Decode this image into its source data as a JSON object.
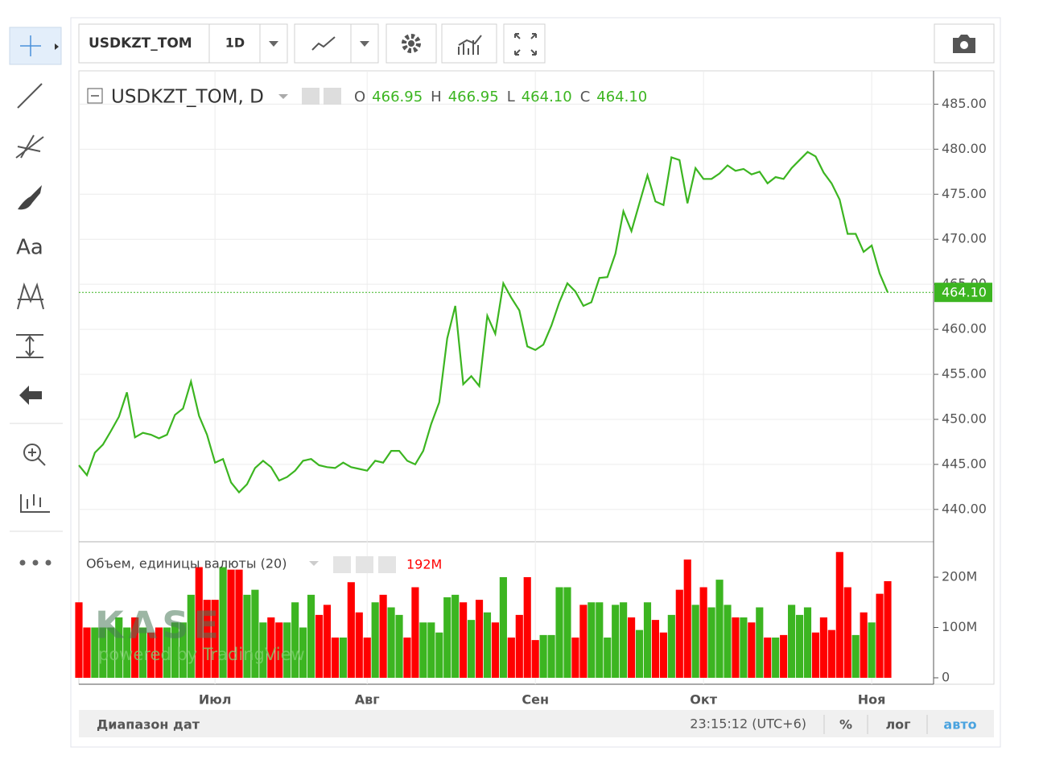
{
  "toolbar": {
    "symbol": "USDKZT_TOM",
    "interval": "1D"
  },
  "left_toolbar": {
    "text_tool": "Aa"
  },
  "watermark": {
    "logo": "KASE",
    "tagline": "powered by TradingView"
  },
  "chart_data": [
    {
      "type": "line",
      "title": "USDKZT_TOM, D",
      "ohlc": [
        {
          "label": "O",
          "value": "466.95"
        },
        {
          "label": "H",
          "value": "466.95"
        },
        {
          "label": "L",
          "value": "464.10"
        },
        {
          "label": "C",
          "value": "464.10"
        }
      ],
      "last_value_label": "464.10",
      "color": "#3cb521",
      "categories": [
        null,
        null,
        null,
        null,
        null,
        null,
        null,
        null,
        null,
        null,
        null,
        null,
        null,
        null,
        null,
        null,
        null,
        "Июл",
        null,
        null,
        null,
        null,
        null,
        null,
        null,
        null,
        null,
        null,
        null,
        null,
        null,
        null,
        null,
        null,
        null,
        null,
        "Авг",
        null,
        null,
        null,
        null,
        null,
        null,
        null,
        null,
        null,
        null,
        null,
        null,
        null,
        null,
        null,
        null,
        null,
        null,
        null,
        null,
        "Сен",
        null,
        null,
        null,
        null,
        null,
        null,
        null,
        null,
        null,
        null,
        null,
        null,
        null,
        null,
        null,
        null,
        null,
        null,
        null,
        null,
        "Окт",
        null,
        null,
        null,
        null,
        null,
        null,
        null,
        null,
        null,
        null,
        null,
        null,
        null,
        null,
        null,
        null,
        null,
        null,
        null,
        null,
        "Ноя",
        null,
        null
      ],
      "values": [
        444.9,
        443.8,
        446.3,
        447.2,
        448.7,
        450.3,
        453.0,
        448.0,
        448.5,
        448.3,
        447.9,
        448.3,
        450.5,
        451.2,
        454.2,
        450.4,
        448.3,
        445.2,
        445.6,
        443.0,
        441.9,
        442.8,
        444.6,
        445.4,
        444.7,
        443.2,
        443.6,
        444.3,
        445.4,
        445.6,
        444.9,
        444.7,
        444.6,
        445.2,
        444.7,
        444.5,
        444.3,
        445.4,
        445.2,
        446.5,
        446.5,
        445.4,
        445.0,
        446.5,
        449.5,
        451.9,
        459.0,
        462.6,
        453.9,
        454.8,
        453.7,
        461.5,
        459.5,
        465.1,
        463.5,
        462.1,
        458.1,
        457.7,
        458.3,
        460.4,
        463.0,
        465.1,
        464.2,
        462.6,
        463.0,
        465.7,
        465.8,
        468.4,
        473.1,
        470.9,
        474.0,
        477.1,
        474.2,
        473.8,
        479.1,
        478.8,
        474.0,
        477.9,
        476.7,
        476.7,
        477.3,
        478.2,
        477.6,
        477.8,
        477.2,
        477.5,
        476.2,
        476.9,
        476.7,
        477.9,
        478.8,
        479.7,
        479.2,
        477.4,
        476.2,
        474.4,
        470.6,
        470.6,
        468.6,
        469.3,
        466.2,
        464.1
      ],
      "ylim": [
        436.5,
        488.7
      ],
      "yticks": [
        {
          "value": 440,
          "label": "440.00"
        },
        {
          "value": 445,
          "label": "445.00"
        },
        {
          "value": 450,
          "label": "450.00"
        },
        {
          "value": 455,
          "label": "455.00"
        },
        {
          "value": 460,
          "label": "460.00"
        },
        {
          "value": 465,
          "label": "465.00"
        },
        {
          "value": 470,
          "label": "470.00"
        },
        {
          "value": 475,
          "label": "475.00"
        },
        {
          "value": 480,
          "label": "480.00"
        },
        {
          "value": 485,
          "label": "485.00"
        }
      ],
      "grid": true
    },
    {
      "type": "bar",
      "title": "Объем, единицы валюты (20)",
      "last_value_label": "192M",
      "up_color": "#3cb521",
      "down_color": "#ff0000",
      "values": [
        150000000,
        100000000,
        100000000,
        100000000,
        100000000,
        120000000,
        100000000,
        120000000,
        100000000,
        90000000,
        100000000,
        100000000,
        110000000,
        110000000,
        165000000,
        220000000,
        155000000,
        155000000,
        220000000,
        215000000,
        215000000,
        165000000,
        175000000,
        110000000,
        120000000,
        110000000,
        110000000,
        150000000,
        100000000,
        165000000,
        125000000,
        145000000,
        80000000,
        80000000,
        190000000,
        130000000,
        80000000,
        150000000,
        165000000,
        140000000,
        125000000,
        80000000,
        180000000,
        110000000,
        110000000,
        90000000,
        160000000,
        165000000,
        150000000,
        115000000,
        155000000,
        130000000,
        110000000,
        200000000,
        80000000,
        125000000,
        200000000,
        75000000,
        85000000,
        85000000,
        180000000,
        180000000,
        80000000,
        145000000,
        150000000,
        150000000,
        80000000,
        145000000,
        150000000,
        120000000,
        95000000,
        150000000,
        115000000,
        90000000,
        125000000,
        175000000,
        235000000,
        145000000,
        180000000,
        140000000,
        195000000,
        145000000,
        120000000,
        120000000,
        110000000,
        140000000,
        80000000,
        80000000,
        85000000,
        145000000,
        125000000,
        140000000,
        90000000,
        120000000,
        95000000,
        250000000,
        180000000,
        85000000,
        130000000,
        110000000,
        167000000,
        192000000
      ],
      "ylim": [
        -12800000,
        268800000
      ],
      "yticks": [
        0,
        {
          "value": 100000000,
          "label": "100M"
        },
        {
          "value": 200000000,
          "label": "200M"
        }
      ]
    }
  ],
  "footer": {
    "date_range": "Диапазон дат",
    "clock": "23:15:12 (UTC+6)",
    "percent": "%",
    "log": "лог",
    "auto": "авто"
  }
}
